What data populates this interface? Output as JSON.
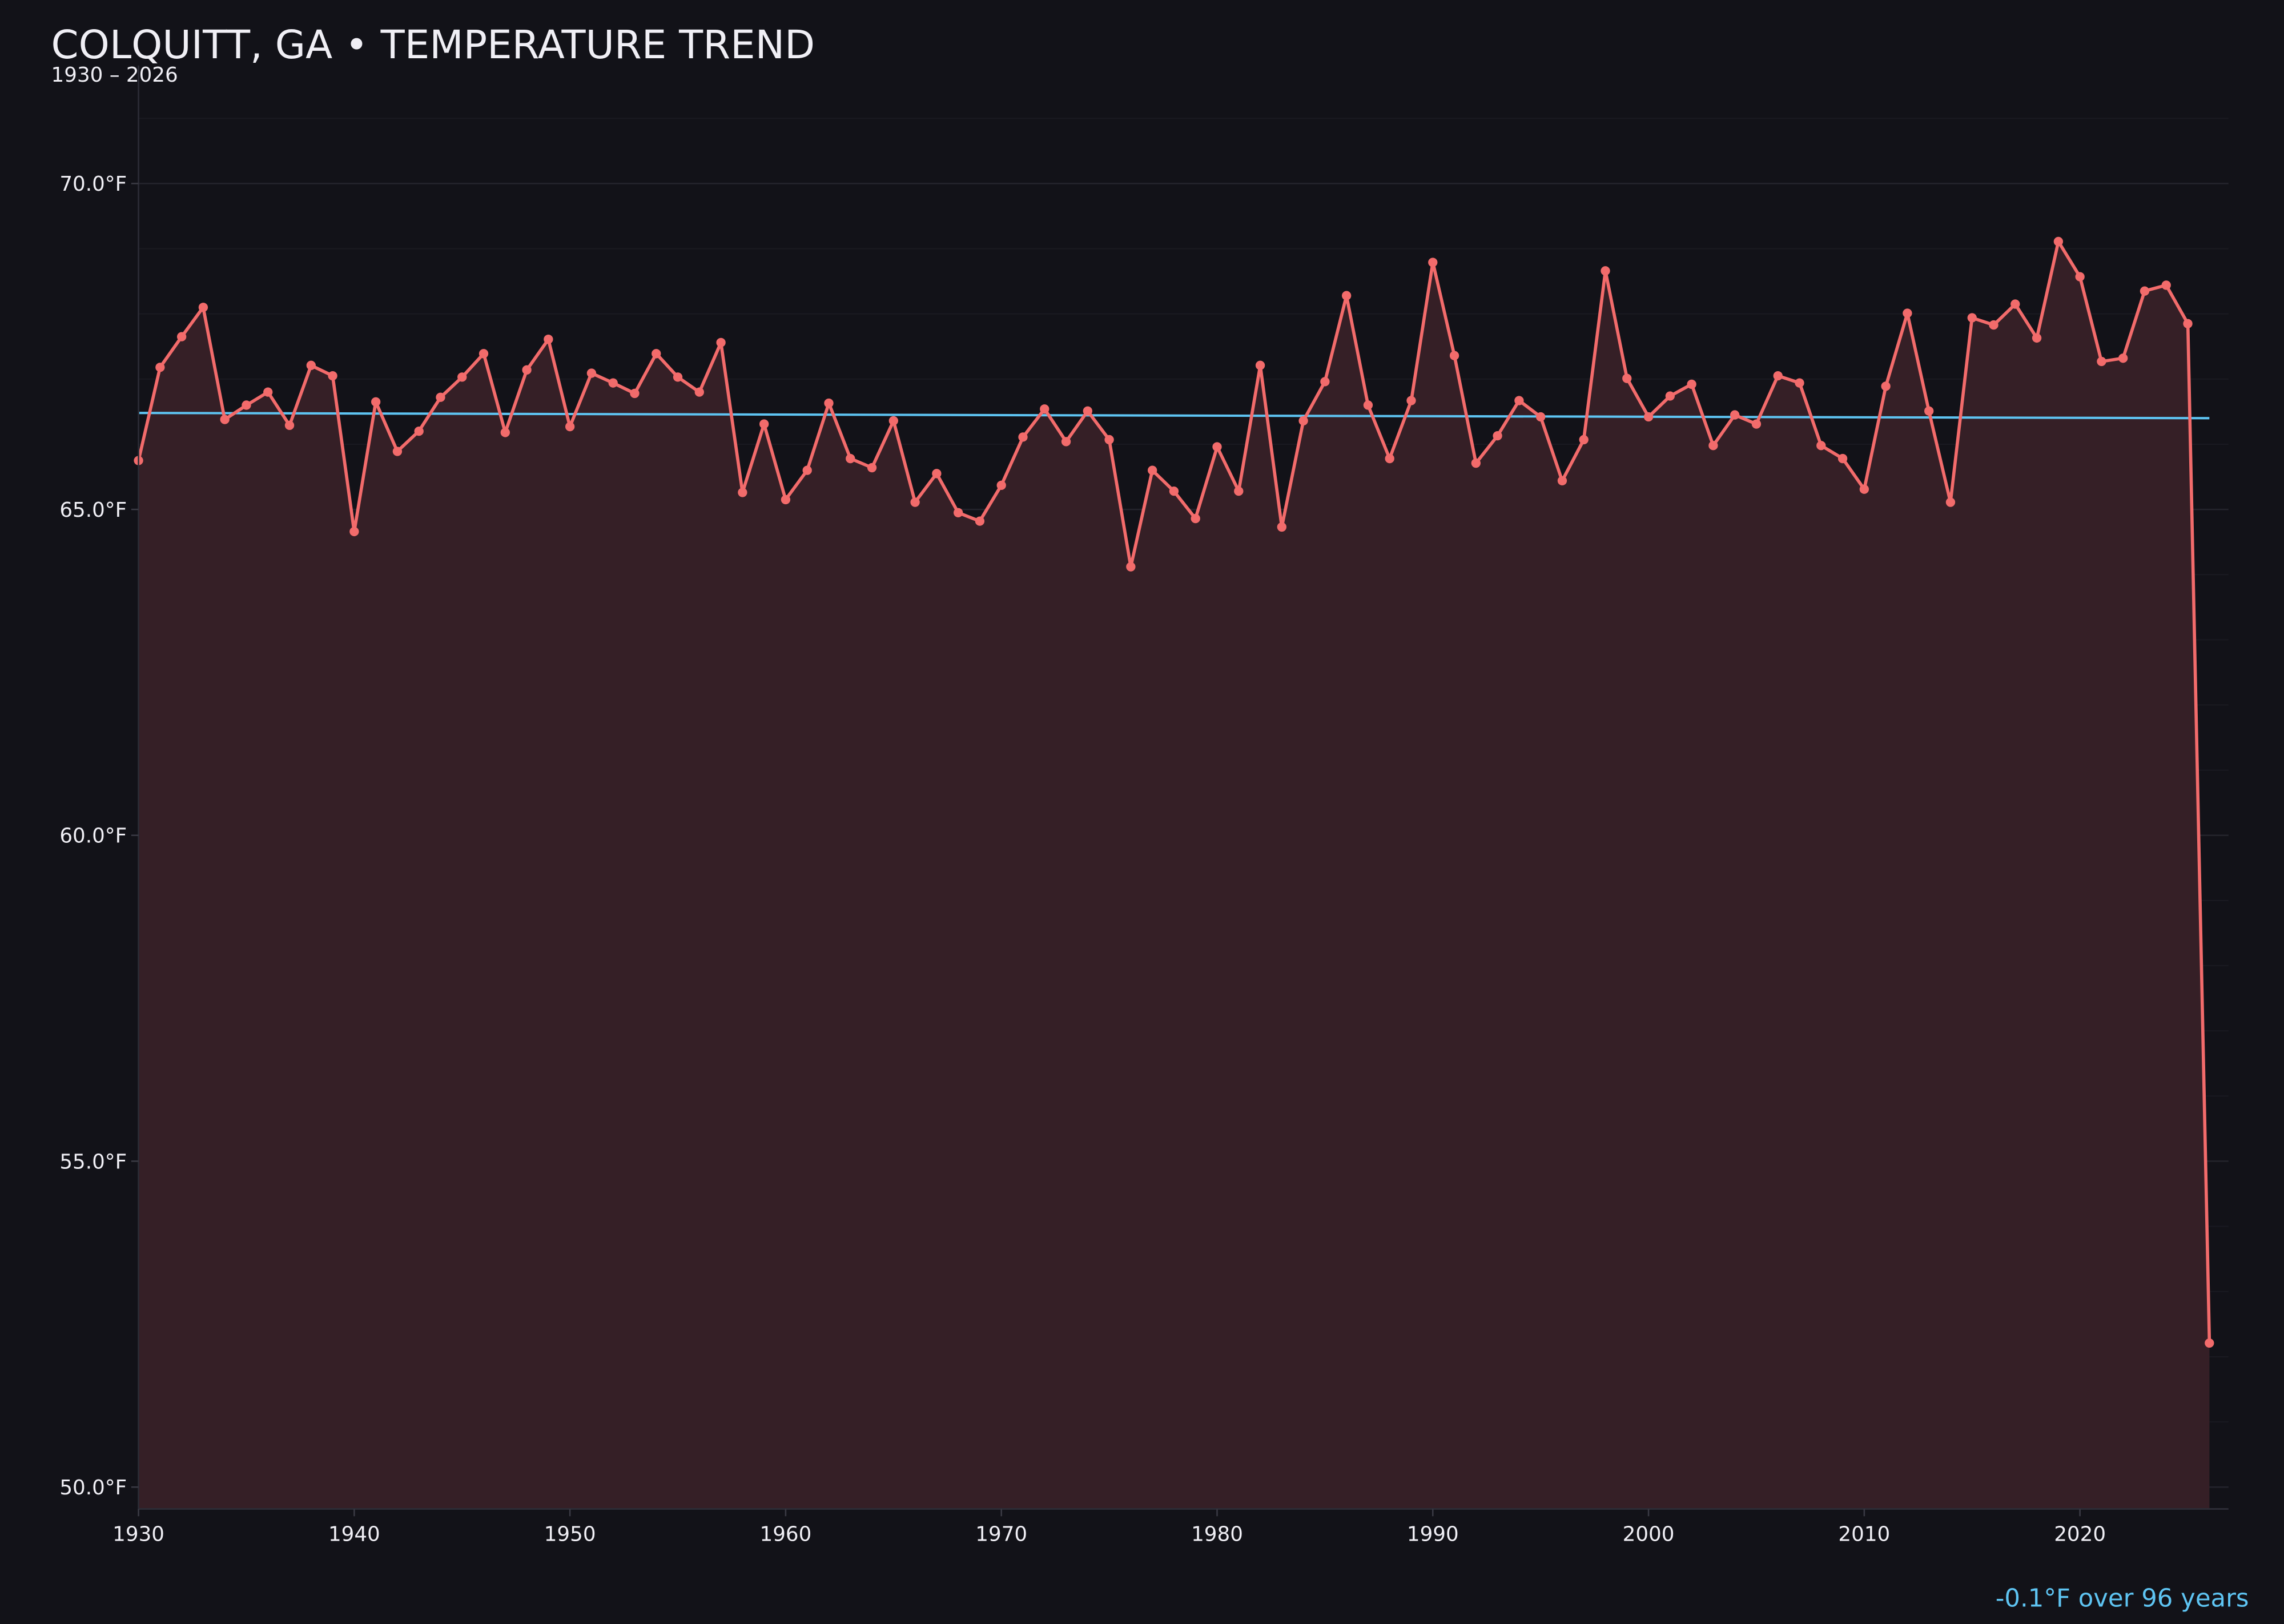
{
  "title": "COLQUITT, GA • TEMPERATURE TREND",
  "subtitle": "1930 – 2026",
  "trend_note": "-0.1°F over 96 years",
  "colors": {
    "background": "#121218",
    "series": "#f26b6b",
    "fill": "#351f26",
    "trend": "#5ec4f2",
    "text": "#f0eff5"
  },
  "chart_data": {
    "type": "line",
    "title": "COLQUITT, GA • TEMPERATURE TREND",
    "subtitle": "1930 – 2026",
    "xlabel": "",
    "ylabel": "",
    "xlim": [
      1930,
      2027
    ],
    "ylim": [
      49.7,
      71.3
    ],
    "grid": true,
    "x_ticks": [
      1930,
      1940,
      1950,
      1960,
      1970,
      1980,
      1990,
      2000,
      2010,
      2020
    ],
    "y_ticks": [
      50,
      55,
      60,
      65,
      70
    ],
    "y_tick_labels": [
      "50.0°F",
      "55.0°F",
      "60.0°F",
      "65.0°F",
      "70.0°F"
    ],
    "x_tick_labels": [
      "1930",
      "1940",
      "1950",
      "1960",
      "1970",
      "1980",
      "1990",
      "2000",
      "2010",
      "2020"
    ],
    "series": [
      {
        "x_start": 1930,
        "values": [
          65.75,
          67.18,
          67.65,
          68.1,
          66.38,
          66.6,
          66.8,
          66.29,
          67.21,
          67.05,
          64.66,
          66.65,
          65.89,
          66.2,
          66.72,
          67.03,
          67.39,
          66.18,
          67.14,
          67.61,
          66.27,
          67.09,
          66.94,
          66.78,
          67.39,
          67.03,
          66.8,
          67.56,
          65.26,
          66.31,
          65.15,
          65.6,
          66.63,
          65.78,
          65.64,
          66.36,
          65.11,
          65.55,
          64.95,
          64.82,
          65.37,
          66.11,
          66.54,
          66.04,
          66.51,
          66.07,
          64.12,
          65.6,
          65.28,
          64.86,
          65.96,
          65.28,
          67.21,
          64.73,
          66.36,
          66.96,
          68.28,
          66.6,
          65.78,
          66.67,
          68.79,
          67.36,
          65.71,
          66.13,
          66.67,
          66.42,
          65.44,
          66.07,
          68.66,
          67.01,
          66.42,
          66.74,
          66.92,
          65.98,
          66.45,
          66.31,
          67.05,
          66.94,
          65.98,
          65.78,
          65.31,
          66.89,
          68.01,
          66.51,
          65.11,
          67.94,
          67.83,
          68.15,
          67.63,
          69.11,
          68.57,
          67.27,
          67.32,
          68.35,
          68.44,
          67.85,
          52.21
        ]
      }
    ],
    "trend_line": {
      "x": [
        1930,
        2026
      ],
      "y": [
        66.48,
        66.4
      ]
    },
    "annotation": "-0.1°F over 96 years"
  }
}
